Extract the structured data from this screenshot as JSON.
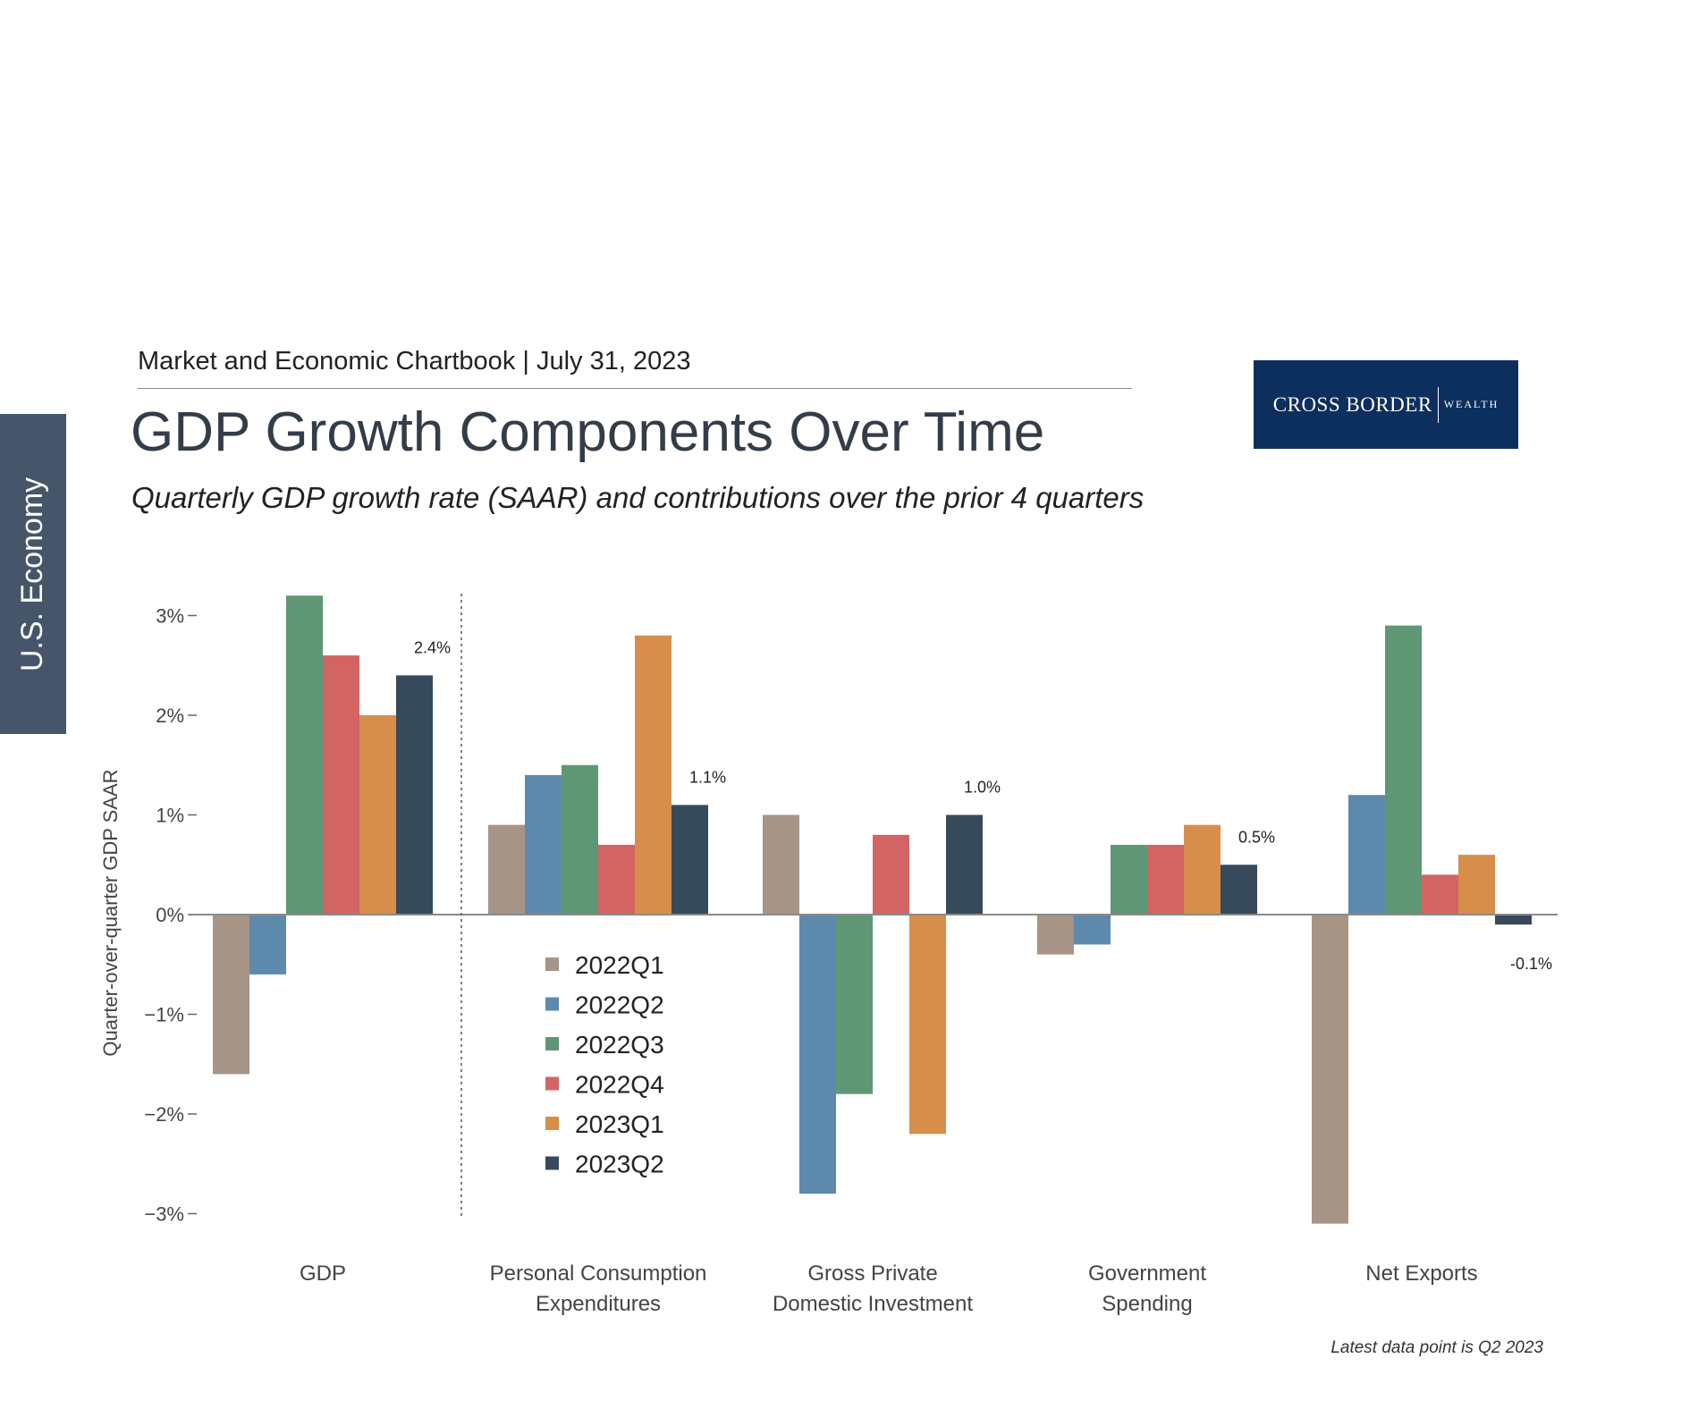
{
  "sidebar": {
    "section_label": "U.S. Economy"
  },
  "header": {
    "chartbook": "Market and Economic Chartbook | July 31, 2023",
    "title": "GDP Growth Components Over Time",
    "subtitle": "Quarterly GDP growth rate (SAAR) and contributions over the prior 4 quarters"
  },
  "logo": {
    "main": "CROSS BORDER",
    "sub": "WEALTH"
  },
  "footnote": "Latest data point is Q2 2023",
  "chart_data": {
    "type": "bar",
    "categories": [
      "GDP",
      "Personal Consumption Expenditures",
      "Gross Private Domestic Investment",
      "Government Spending",
      "Net Exports"
    ],
    "category_lines": [
      [
        "GDP"
      ],
      [
        "Personal Consumption",
        "Expenditures"
      ],
      [
        "Gross Private",
        "Domestic Investment"
      ],
      [
        "Government",
        "Spending"
      ],
      [
        "Net Exports"
      ]
    ],
    "series": [
      {
        "name": "2022Q1",
        "color": "#a69486",
        "values": [
          -1.6,
          0.9,
          1.0,
          -0.4,
          -3.1
        ]
      },
      {
        "name": "2022Q2",
        "color": "#5d89ad",
        "values": [
          -0.6,
          1.4,
          -2.8,
          -0.3,
          1.2
        ]
      },
      {
        "name": "2022Q3",
        "color": "#5f9774",
        "values": [
          3.2,
          1.5,
          -1.8,
          0.7,
          2.9
        ]
      },
      {
        "name": "2022Q4",
        "color": "#d26463",
        "values": [
          2.6,
          0.7,
          0.8,
          0.7,
          0.4
        ]
      },
      {
        "name": "2023Q1",
        "color": "#d78e4b",
        "values": [
          2.0,
          2.8,
          -2.2,
          0.9,
          0.6
        ]
      },
      {
        "name": "2023Q2",
        "color": "#374a5b",
        "values": [
          2.4,
          1.1,
          1.0,
          0.5,
          -0.1
        ]
      }
    ],
    "data_labels": [
      "2.4%",
      "1.1%",
      "1.0%",
      "0.5%",
      "-0.1%"
    ],
    "ylabel": "Quarter-over-quarter GDP SAAR",
    "ylim": [
      -3.2,
      3.2
    ],
    "yticks": [
      3,
      2,
      1,
      0,
      -1,
      -2,
      -3
    ],
    "ytick_labels": [
      "3%",
      "2%",
      "1%",
      "0%",
      "−1%",
      "−2%",
      "−3%"
    ],
    "legend_position": "center-left, inside plot",
    "separator_after_category": "GDP"
  }
}
